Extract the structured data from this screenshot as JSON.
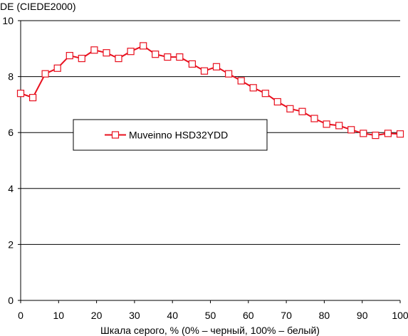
{
  "chart_data": {
    "type": "line",
    "ylabel": "DE (CIEDE2000)",
    "xlabel": "Шкала серого, % (0% – черный, 100% – белый)",
    "xlim": [
      0,
      100
    ],
    "ylim": [
      0,
      10
    ],
    "xticks": [
      "0",
      "10",
      "20",
      "30",
      "40",
      "50",
      "60",
      "70",
      "80",
      "90",
      "100"
    ],
    "yticks": [
      "0",
      "2",
      "4",
      "6",
      "8",
      "10"
    ],
    "grid": "horizontal",
    "legend": "center-left",
    "colors": {
      "series": "#e8101e",
      "grid": "#000000",
      "background": "#ffffff"
    },
    "series": [
      {
        "name": "Muveinno HSD32YDD",
        "x": [
          0,
          3.2,
          6.5,
          9.7,
          12.9,
          16.1,
          19.4,
          22.6,
          25.8,
          29.0,
          32.3,
          35.5,
          38.7,
          41.9,
          45.2,
          48.4,
          51.6,
          54.8,
          58.1,
          61.3,
          64.5,
          67.7,
          71.0,
          74.2,
          77.4,
          80.6,
          83.9,
          87.1,
          90.3,
          93.5,
          96.8,
          100
        ],
        "values": [
          7.4,
          7.25,
          8.1,
          8.3,
          8.75,
          8.65,
          8.95,
          8.85,
          8.65,
          8.9,
          9.1,
          8.8,
          8.7,
          8.7,
          8.45,
          8.2,
          8.35,
          8.1,
          7.85,
          7.6,
          7.4,
          7.1,
          6.85,
          6.75,
          6.5,
          6.3,
          6.25,
          6.1,
          5.97,
          5.9,
          5.97,
          5.95
        ]
      }
    ]
  }
}
